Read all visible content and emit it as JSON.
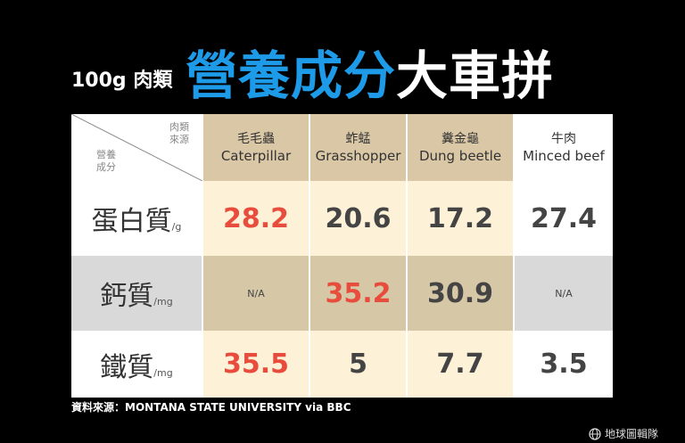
{
  "title": {
    "subtitle": "100g 肉類",
    "blue": "營養成分",
    "white": "大車拼"
  },
  "table": {
    "corner_top": [
      "肉類",
      "來源"
    ],
    "corner_bottom": [
      "營養",
      "成分"
    ],
    "columns": [
      {
        "zh": "毛毛蟲",
        "en": "Caterpillar"
      },
      {
        "zh": "蚱蜢",
        "en": "Grasshopper"
      },
      {
        "zh": "糞金龜",
        "en": "Dung beetle"
      },
      {
        "zh": "牛肉",
        "en": "Minced beef"
      }
    ],
    "rows": [
      {
        "label": "蛋白質",
        "unit": "/g",
        "values": [
          "28.2",
          "20.6",
          "17.2",
          "27.4"
        ]
      },
      {
        "label": "鈣質",
        "unit": "/mg",
        "values": [
          "N/A",
          "35.2",
          "30.9",
          "N/A"
        ]
      },
      {
        "label": "鐵質",
        "unit": "/mg",
        "values": [
          "35.5",
          "5",
          "7.7",
          "3.5"
        ]
      }
    ]
  },
  "source": "資料來源：MONTANA STATE UNIVERSITY via BBC",
  "logo": "地球圖輯隊",
  "colors": {
    "highlight": "#e74c3c",
    "title_blue": "#1e9be8"
  }
}
